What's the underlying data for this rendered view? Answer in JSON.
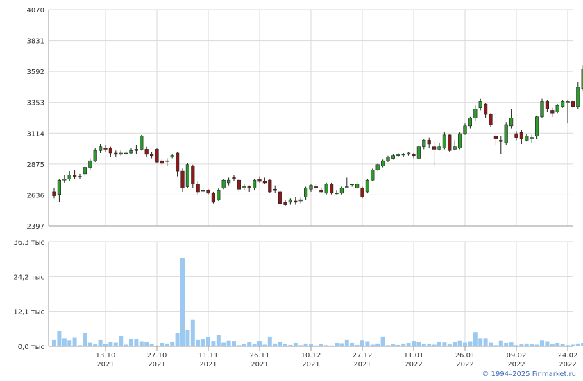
{
  "chart_data": {
    "type": "candlestick",
    "price_ylim": [
      2397,
      4070
    ],
    "price_ticks": [
      "4070",
      "3831",
      "3592",
      "3353",
      "3114",
      "2875",
      "2636",
      "2397"
    ],
    "volume_ylim": [
      0,
      36.3
    ],
    "volume_ticks": [
      "36,3 тыс",
      "24,2 тыс",
      "12,1 тыс",
      "0,0 тыс"
    ],
    "x_ticks": [
      {
        "day": "13.10",
        "year": "2021",
        "index": 10
      },
      {
        "day": "27.10",
        "year": "2021",
        "index": 20
      },
      {
        "day": "11.11",
        "year": "2021",
        "index": 30
      },
      {
        "day": "26.11",
        "year": "2021",
        "index": 40
      },
      {
        "day": "10.12",
        "year": "2021",
        "index": 50
      },
      {
        "day": "27.12",
        "year": "2021",
        "index": 60
      },
      {
        "day": "11.01",
        "year": "2022",
        "index": 70
      },
      {
        "day": "26.01",
        "year": "2022",
        "index": 80
      },
      {
        "day": "09.02",
        "year": "2022",
        "index": 90
      },
      {
        "day": "24.02",
        "year": "2022",
        "index": 100
      }
    ],
    "up_color": "#2e9b2e",
    "down_color": "#8b1a1a",
    "volume_color": "#9cc9f0",
    "candles": [
      [
        2660,
        2630,
        2690,
        2610,
        2.2
      ],
      [
        2640,
        2750,
        2760,
        2580,
        5.3
      ],
      [
        2750,
        2760,
        2790,
        2730,
        2.8
      ],
      [
        2760,
        2790,
        2820,
        2740,
        2.1
      ],
      [
        2790,
        2780,
        2830,
        2760,
        3.0
      ],
      [
        2780,
        2780,
        2800,
        2760,
        0.4
      ],
      [
        2800,
        2850,
        2860,
        2780,
        4.6
      ],
      [
        2850,
        2900,
        2920,
        2830,
        1.3
      ],
      [
        2900,
        2980,
        3000,
        2890,
        0.7
      ],
      [
        2980,
        3010,
        3030,
        2960,
        2.2
      ],
      [
        3000,
        2990,
        3020,
        2970,
        0.9
      ],
      [
        3000,
        2960,
        3010,
        2930,
        1.6
      ],
      [
        2960,
        2950,
        2980,
        2930,
        1.3
      ],
      [
        2950,
        2960,
        2980,
        2940,
        3.6
      ],
      [
        2960,
        2960,
        2980,
        2940,
        0.6
      ],
      [
        2960,
        2980,
        3000,
        2950,
        2.5
      ],
      [
        2980,
        2990,
        3020,
        2950,
        2.4
      ],
      [
        2990,
        3090,
        3100,
        2980,
        1.8
      ],
      [
        2990,
        2950,
        3010,
        2930,
        1.6
      ],
      [
        2950,
        2940,
        2970,
        2920,
        0.8
      ],
      [
        2990,
        2890,
        3000,
        2880,
        0.3
      ],
      [
        2900,
        2880,
        2920,
        2860,
        1.2
      ],
      [
        2900,
        2900,
        2920,
        2860,
        1.0
      ],
      [
        2930,
        2940,
        2950,
        2920,
        1.7
      ],
      [
        2960,
        2820,
        2970,
        2780,
        4.6
      ],
      [
        2820,
        2690,
        2840,
        2660,
        30.6
      ],
      [
        2700,
        2870,
        2880,
        2690,
        5.7
      ],
      [
        2860,
        2720,
        2870,
        2690,
        9.2
      ],
      [
        2720,
        2660,
        2740,
        2640,
        2.2
      ],
      [
        2670,
        2670,
        2690,
        2650,
        2.6
      ],
      [
        2670,
        2650,
        2680,
        2640,
        3.2
      ],
      [
        2650,
        2580,
        2660,
        2570,
        1.9
      ],
      [
        2600,
        2670,
        2690,
        2590,
        3.9
      ],
      [
        2690,
        2750,
        2760,
        2680,
        1.3
      ],
      [
        2730,
        2750,
        2770,
        2710,
        2.0
      ],
      [
        2770,
        2760,
        2790,
        2740,
        1.9
      ],
      [
        2750,
        2680,
        2760,
        2660,
        0.4
      ],
      [
        2690,
        2700,
        2720,
        2670,
        0.9
      ],
      [
        2700,
        2690,
        2710,
        2660,
        1.6
      ],
      [
        2690,
        2750,
        2760,
        2670,
        0.8
      ],
      [
        2760,
        2740,
        2780,
        2730,
        1.9
      ],
      [
        2740,
        2730,
        2770,
        2720,
        0.6
      ],
      [
        2750,
        2660,
        2760,
        2650,
        3.4
      ],
      [
        2680,
        2670,
        2710,
        2650,
        1.0
      ],
      [
        2660,
        2570,
        2670,
        2560,
        1.7
      ],
      [
        2580,
        2560,
        2600,
        2550,
        0.8
      ],
      [
        2580,
        2600,
        2610,
        2560,
        0.5
      ],
      [
        2590,
        2580,
        2620,
        2560,
        1.2
      ],
      [
        2590,
        2600,
        2620,
        2570,
        0.4
      ],
      [
        2620,
        2690,
        2700,
        2600,
        1.0
      ],
      [
        2680,
        2710,
        2720,
        2660,
        0.7
      ],
      [
        2700,
        2690,
        2720,
        2670,
        0.3
      ],
      [
        2670,
        2660,
        2690,
        2650,
        0.9
      ],
      [
        2650,
        2720,
        2730,
        2640,
        0.4
      ],
      [
        2720,
        2650,
        2730,
        2640,
        0.3
      ],
      [
        2650,
        2650,
        2670,
        2640,
        1.2
      ],
      [
        2650,
        2690,
        2700,
        2640,
        1.1
      ],
      [
        2690,
        2700,
        2770,
        2690,
        2.2
      ],
      [
        2720,
        2720,
        2720,
        2700,
        1.2
      ],
      [
        2690,
        2720,
        2740,
        2680,
        0.5
      ],
      [
        2690,
        2620,
        2700,
        2610,
        2.1
      ],
      [
        2660,
        2750,
        2760,
        2650,
        1.8
      ],
      [
        2750,
        2830,
        2840,
        2740,
        0.6
      ],
      [
        2830,
        2870,
        2880,
        2820,
        1.0
      ],
      [
        2860,
        2900,
        2910,
        2850,
        3.4
      ],
      [
        2900,
        2930,
        2940,
        2890,
        0.4
      ],
      [
        2920,
        2940,
        2950,
        2910,
        0.7
      ],
      [
        2940,
        2950,
        2960,
        2930,
        0.5
      ],
      [
        2950,
        2950,
        2960,
        2930,
        1.0
      ],
      [
        2950,
        2960,
        2970,
        2940,
        1.2
      ],
      [
        2950,
        2940,
        2960,
        2920,
        1.9
      ],
      [
        2920,
        3010,
        3020,
        2910,
        1.5
      ],
      [
        3010,
        3060,
        3070,
        2990,
        0.9
      ],
      [
        3060,
        3030,
        3080,
        3000,
        0.8
      ],
      [
        3010,
        2990,
        3050,
        2860,
        0.6
      ],
      [
        2990,
        3010,
        3040,
        2980,
        1.7
      ],
      [
        3000,
        3100,
        3120,
        2990,
        1.4
      ],
      [
        3100,
        2980,
        3110,
        2970,
        0.7
      ],
      [
        2990,
        3010,
        3060,
        2980,
        1.5
      ],
      [
        3000,
        3110,
        3120,
        2990,
        2.0
      ],
      [
        3110,
        3170,
        3190,
        3100,
        1.3
      ],
      [
        3170,
        3230,
        3240,
        3150,
        1.8
      ],
      [
        3230,
        3300,
        3330,
        3210,
        5.0
      ],
      [
        3310,
        3360,
        3380,
        3290,
        2.8
      ],
      [
        3340,
        3260,
        3350,
        3230,
        2.8
      ],
      [
        3260,
        3180,
        3270,
        3160,
        1.3
      ],
      [
        3090,
        3070,
        3100,
        3020,
        0.4
      ],
      [
        3050,
        3060,
        3090,
        2950,
        2.0
      ],
      [
        3040,
        3180,
        3200,
        3020,
        1.2
      ],
      [
        3170,
        3230,
        3300,
        3150,
        1.4
      ],
      [
        3110,
        3080,
        3130,
        3060,
        0.4
      ],
      [
        3120,
        3070,
        3140,
        3030,
        0.7
      ],
      [
        3060,
        3090,
        3110,
        3050,
        1.0
      ],
      [
        3070,
        3080,
        3100,
        3040,
        0.7
      ],
      [
        3090,
        3240,
        3250,
        3070,
        0.6
      ],
      [
        3240,
        3360,
        3380,
        3230,
        2.1
      ],
      [
        3360,
        3300,
        3370,
        3280,
        1.8
      ],
      [
        3290,
        3270,
        3310,
        3240,
        0.7
      ],
      [
        3280,
        3330,
        3340,
        3270,
        1.2
      ],
      [
        3320,
        3360,
        3370,
        3310,
        0.9
      ],
      [
        3350,
        3360,
        3370,
        3190,
        0.4
      ],
      [
        3360,
        3320,
        3370,
        3300,
        0.6
      ],
      [
        3320,
        3470,
        3510,
        3300,
        1.0
      ],
      [
        3460,
        3610,
        3640,
        3440,
        1.2
      ],
      [
        3600,
        3450,
        3610,
        3410,
        3.3
      ],
      [
        3450,
        3450,
        3600,
        3270,
        3.9
      ],
      [
        3450,
        3410,
        3460,
        3380,
        6.2
      ],
      [
        3430,
        3480,
        3500,
        3420,
        1.3
      ],
      [
        3540,
        3530,
        3560,
        3520,
        1.0
      ],
      [
        3530,
        3520,
        3550,
        3500,
        0.4
      ],
      [
        3480,
        3510,
        3520,
        3460,
        1.2
      ],
      [
        3500,
        3510,
        3530,
        3480,
        1.5
      ],
      [
        3300,
        3660,
        3700,
        3220,
        0.9
      ],
      [
        3710,
        3950,
        3960,
        3010,
        2.6
      ]
    ]
  },
  "copyright": "© 1994–2025 Finmarket.ru"
}
